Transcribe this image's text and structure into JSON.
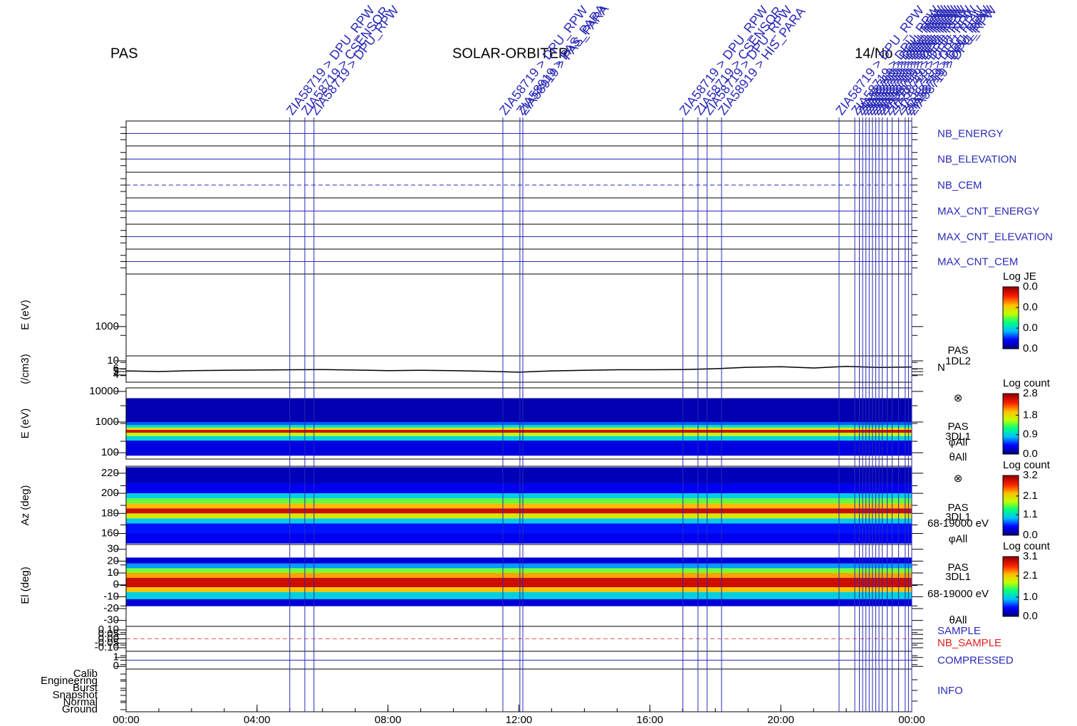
{
  "header": {
    "left": "PAS",
    "center": "SOLAR-ORBITER",
    "right": "14/No"
  },
  "time_axis": {
    "xlim": [
      0,
      24
    ],
    "xticks": [
      {
        "value": 0,
        "label": "00:00"
      },
      {
        "value": 4,
        "label": "04:00"
      },
      {
        "value": 8,
        "label": "08:00"
      },
      {
        "value": 12,
        "label": "12:00"
      },
      {
        "value": 16,
        "label": "16:00"
      },
      {
        "value": 20,
        "label": "20:00"
      },
      {
        "value": 24,
        "label": "00:00"
      }
    ]
  },
  "events": [
    {
      "x": 5.0,
      "label": "ZIA58719 > DPU_RPW"
    },
    {
      "x": 5.46,
      "label": "ZIA58719 > CSENSOR"
    },
    {
      "x": 5.74,
      "label": "ZIA58719 > DPU_RPW"
    },
    {
      "x": 11.51,
      "label": "ZIA58719 > DPU_RPW"
    },
    {
      "x": 12.03,
      "label": "ZIA58919 > PAS_PARA"
    },
    {
      "x": 12.12,
      "label": "ZIA58919 > PAS_PARA"
    },
    {
      "x": 17.01,
      "label": "ZIA58719 > DPU_RPW"
    },
    {
      "x": 17.47,
      "label": "ZIA58719 > CSENSOR"
    },
    {
      "x": 17.75,
      "label": "ZIA58719 > DPU_RPW"
    },
    {
      "x": 18.19,
      "label": "ZIA58919 > HIS_PARA"
    },
    {
      "x": 21.78,
      "label": "ZIA58719 > DPU_RPW"
    },
    {
      "x": 22.26,
      "label": "ZIA58719 > DPU_RPW"
    },
    {
      "x": 22.4,
      "label": "ZIA58719 > DPU_RPW"
    },
    {
      "x": 22.5,
      "label": "ZIA58719 > DPU_RPW"
    },
    {
      "x": 22.6,
      "label": "ZIA58719 > DPU_RPW"
    },
    {
      "x": 22.7,
      "label": "ZIA58719 > DPU_RPW"
    },
    {
      "x": 22.8,
      "label": "ZIA58719 > DPU_RPW"
    },
    {
      "x": 22.9,
      "label": "ZIA58719 > DPU_RPW"
    },
    {
      "x": 23.0,
      "label": "ZIA58719 > DPU_RPW"
    },
    {
      "x": 23.1,
      "label": "ZIA58719 > DPU_RPW"
    },
    {
      "x": 23.25,
      "label": "ZIA58719 > DPU_RPW"
    },
    {
      "x": 23.4,
      "label": "ZIA58719 > DPU_RPW"
    },
    {
      "x": 23.6,
      "label": "ZIA58719 > DPU_RPW"
    },
    {
      "x": 23.8,
      "label": "ZIA58719 > DPU_RPW"
    },
    {
      "x": 23.9,
      "label": "ZIA58719 > DPU_RPW"
    },
    {
      "x": 24.0,
      "label": "ZIA58719 > DPU_RPW"
    }
  ],
  "colormap": [
    "#000080",
    "#0000ff",
    "#00c0ff",
    "#00ff80",
    "#c0ff00",
    "#ffc000",
    "#ff2000",
    "#a00000"
  ],
  "chart_data": [
    {
      "type": "status",
      "labels": [
        "NB_ENERGY"
      ]
    },
    {
      "type": "status",
      "labels": [
        "NB_ELEVATION"
      ]
    },
    {
      "type": "status",
      "labels": [
        "NB_CEM"
      ]
    },
    {
      "type": "status",
      "labels": [
        "MAX_CNT_ENERGY"
      ]
    },
    {
      "type": "status",
      "labels": [
        "MAX_CNT_ELEVATION"
      ]
    },
    {
      "type": "status",
      "labels": [
        "MAX_CNT_CEM"
      ]
    },
    {
      "type": "spectrogram",
      "ylabel": "E (eV)",
      "log_scale": true,
      "ylim": [
        150,
        30000
      ],
      "yticks": [
        1000
      ],
      "rows": [],
      "colorbar": {
        "title": "Log JE",
        "clim": [
          0,
          0.03
        ],
        "ticks": [
          {
            "value": 0.03,
            "label": "0.0"
          },
          {
            "value": 0.02,
            "label": "0.0"
          },
          {
            "value": 0.01,
            "label": "0.0"
          },
          {
            "value": 0,
            "label": "0.0"
          }
        ]
      }
    },
    {
      "type": "line",
      "ylabel": "(/cm3)",
      "log_scale": true,
      "ylim": [
        2.5,
        13.8
      ],
      "yticks": [
        10,
        6,
        5,
        4
      ],
      "color": "#000000",
      "labels": [
        "PAS",
        "1DL2",
        "N"
      ],
      "x": [
        0,
        1,
        2,
        3,
        4,
        5,
        6,
        7,
        8,
        9,
        10,
        11,
        12,
        13,
        14,
        15,
        16,
        17,
        18,
        19,
        20,
        21,
        22,
        23,
        24
      ],
      "values": [
        5.2,
        5.0,
        5.3,
        5.4,
        5.5,
        5.6,
        5.7,
        5.5,
        5.3,
        5.4,
        5.3,
        5.1,
        4.8,
        5.2,
        5.4,
        5.6,
        5.6,
        5.7,
        6.0,
        6.6,
        6.8,
        6.3,
        7.0,
        6.5,
        6.7
      ]
    },
    {
      "type": "spectrogram",
      "ylabel": "E (eV)",
      "log_scale": true,
      "ylim": [
        62,
        13000
      ],
      "yticks": [
        10000,
        1000,
        100
      ],
      "labels": [
        "⊗",
        "PAS",
        "3DL1",
        "φAll",
        "θAll"
      ],
      "rows": [
        {
          "lo": 80,
          "hi": 250,
          "value": 0.3
        },
        {
          "lo": 250,
          "hi": 350,
          "value": 0.9
        },
        {
          "lo": 350,
          "hi": 450,
          "value": 1.6
        },
        {
          "lo": 450,
          "hi": 560,
          "value": 2.6
        },
        {
          "lo": 560,
          "hi": 660,
          "value": 1.8
        },
        {
          "lo": 660,
          "hi": 800,
          "value": 1.0
        },
        {
          "lo": 800,
          "hi": 1000,
          "value": 0.6
        },
        {
          "lo": 1000,
          "hi": 6000,
          "value": 0.15
        }
      ],
      "colorbar": {
        "title": "Log count",
        "clim": [
          0,
          2.8
        ],
        "ticks": [
          2.8,
          1.8,
          0.9,
          {
            "value": 0,
            "label": "0.0"
          }
        ]
      }
    },
    {
      "type": "spectrogram",
      "ylabel": "Az (deg)",
      "log_scale": false,
      "ylim": [
        149,
        227
      ],
      "yticks": [
        220,
        200,
        180,
        160
      ],
      "labels": [
        "⊗",
        "PAS",
        "3DL1",
        "68-19000 eV",
        "φAll"
      ],
      "rows": [
        {
          "lo": 150,
          "hi": 160,
          "value": 0.4
        },
        {
          "lo": 160,
          "hi": 170,
          "value": 0.5
        },
        {
          "lo": 170,
          "hi": 175,
          "value": 1.0
        },
        {
          "lo": 175,
          "hi": 180,
          "value": 2.0
        },
        {
          "lo": 180,
          "hi": 185,
          "value": 3.0
        },
        {
          "lo": 185,
          "hi": 190,
          "value": 2.3
        },
        {
          "lo": 190,
          "hi": 195,
          "value": 1.6
        },
        {
          "lo": 195,
          "hi": 200,
          "value": 1.0
        },
        {
          "lo": 200,
          "hi": 210,
          "value": 0.4
        },
        {
          "lo": 210,
          "hi": 226,
          "value": 0.2
        }
      ],
      "colorbar": {
        "title": "Log count",
        "clim": [
          0,
          3.2
        ],
        "ticks": [
          3.2,
          2.1,
          1.1,
          {
            "value": 0,
            "label": "0.0"
          }
        ]
      }
    },
    {
      "type": "spectrogram",
      "ylabel": "El (deg)",
      "log_scale": false,
      "ylim": [
        -35,
        34
      ],
      "yticks": [
        30,
        20,
        10,
        0,
        -10,
        -20,
        -30
      ],
      "labels": [
        "PAS",
        "3DL1",
        "68-19000 eV",
        "θAll"
      ],
      "rows": [
        {
          "lo": -18,
          "hi": -12,
          "value": 0.3
        },
        {
          "lo": -12,
          "hi": -6,
          "value": 1.0
        },
        {
          "lo": -6,
          "hi": -2,
          "value": 2.2
        },
        {
          "lo": -2,
          "hi": 6,
          "value": 2.9
        },
        {
          "lo": 6,
          "hi": 10,
          "value": 2.3
        },
        {
          "lo": 10,
          "hi": 14,
          "value": 1.6
        },
        {
          "lo": 14,
          "hi": 18,
          "value": 0.8
        },
        {
          "lo": 18,
          "hi": 23,
          "value": 0.3
        }
      ],
      "colorbar": {
        "title": "Log count",
        "clim": [
          0,
          3.1
        ],
        "ticks": [
          3.1,
          2.1,
          {
            "value": 1,
            "label": "1.0"
          },
          {
            "value": 0,
            "label": "0.0"
          }
        ]
      }
    },
    {
      "type": "status",
      "ylim": [
        -0.14,
        0.14
      ],
      "yticks": [
        {
          "value": 0.1,
          "label": "0.10"
        },
        0.05,
        {
          "value": 0,
          "label": "0.00"
        },
        -0.05,
        {
          "value": -0.1,
          "label": "-0.10"
        }
      ],
      "labels": [
        "SAMPLE",
        "NB_SAMPLE"
      ]
    },
    {
      "type": "status",
      "ylim": [
        -0.3,
        1.7
      ],
      "yticks": [
        1,
        0
      ],
      "labels": [
        "COMPRESSED"
      ]
    },
    {
      "type": "categorical",
      "categories": [
        "Calib",
        "Engineering",
        "Burst",
        "Snapshot",
        "Normal",
        "Ground"
      ],
      "labels": [
        "INFO"
      ]
    }
  ]
}
